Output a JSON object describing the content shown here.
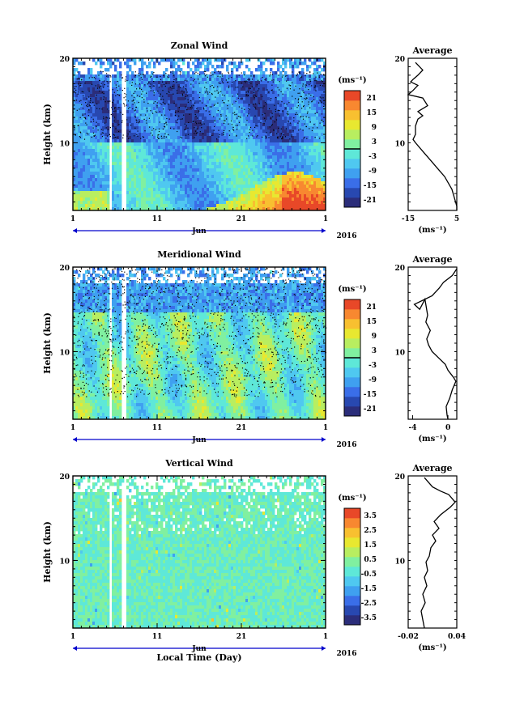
{
  "chart_data": [
    {
      "type": "heatmap",
      "title": "Zonal Wind",
      "ylabel": "Height (km)",
      "yticks": [
        "20",
        "10"
      ],
      "ylim": [
        2,
        20
      ],
      "xticks": [
        "1",
        "11",
        "21",
        "1"
      ],
      "month_label": "Jun",
      "year_label": "2016",
      "colorbar": {
        "unit": "(ms⁻¹)",
        "ticks": [
          "21",
          "15",
          "9",
          "3",
          "-3",
          "-9",
          "-15",
          "-21"
        ],
        "range": [
          -24,
          24
        ]
      },
      "profile": {
        "title": "Average",
        "yticks": [
          "20",
          "10"
        ],
        "xticks": [
          "-15",
          "5"
        ],
        "xlim": [
          -15,
          5
        ],
        "xlabel": "(ms⁻¹)",
        "points": [
          [
            -12,
            19.5
          ],
          [
            -9,
            18.6
          ],
          [
            -11,
            18
          ],
          [
            -13,
            17.5
          ],
          [
            -14,
            17.2
          ],
          [
            -11,
            16.8
          ],
          [
            -13,
            16.2
          ],
          [
            -15,
            15.7
          ],
          [
            -9,
            15.3
          ],
          [
            -7,
            14.4
          ],
          [
            -11,
            13.7
          ],
          [
            -9,
            13.2
          ],
          [
            -11,
            12.8
          ],
          [
            -12,
            12
          ],
          [
            -12,
            11
          ],
          [
            -13,
            10.4
          ],
          [
            -12,
            10
          ],
          [
            -9,
            9
          ],
          [
            -6,
            8
          ],
          [
            -3,
            7
          ],
          [
            0,
            6
          ],
          [
            2,
            5
          ],
          [
            3,
            4.5
          ],
          [
            4,
            3.5
          ],
          [
            5,
            2.5
          ],
          [
            5,
            2
          ]
        ]
      }
    },
    {
      "type": "heatmap",
      "title": "Meridional Wind",
      "ylabel": "Height (km)",
      "yticks": [
        "20",
        "10"
      ],
      "ylim": [
        2,
        20
      ],
      "xticks": [
        "1",
        "11",
        "21",
        "1"
      ],
      "month_label": "Jun",
      "year_label": "2016",
      "colorbar": {
        "unit": "(ms⁻¹)",
        "ticks": [
          "21",
          "15",
          "9",
          "3",
          "-3",
          "-9",
          "-15",
          "-21"
        ],
        "range": [
          -24,
          24
        ]
      },
      "profile": {
        "title": "Average",
        "yticks": [
          "20",
          "10"
        ],
        "xticks": [
          "-4",
          "0"
        ],
        "xlim": [
          -4.5,
          1
        ],
        "xlabel": "(ms⁻¹)",
        "points": [
          [
            1,
            19.8
          ],
          [
            0.5,
            19
          ],
          [
            -0.5,
            18.2
          ],
          [
            -1,
            17.5
          ],
          [
            -1.8,
            16.6
          ],
          [
            -3.8,
            15.6
          ],
          [
            -3.2,
            15
          ],
          [
            -2.6,
            16.2
          ],
          [
            -2.3,
            14.3
          ],
          [
            -2.5,
            13.5
          ],
          [
            -2,
            12.5
          ],
          [
            -2.4,
            11.5
          ],
          [
            -2.2,
            10.8
          ],
          [
            -1.8,
            10
          ],
          [
            -1,
            9.2
          ],
          [
            -0.3,
            8.5
          ],
          [
            0,
            7.8
          ],
          [
            0.6,
            7
          ],
          [
            0.9,
            6.5
          ],
          [
            0.5,
            5.5
          ],
          [
            0.2,
            4.5
          ],
          [
            -0.2,
            3.5
          ],
          [
            -0.1,
            2.5
          ],
          [
            0,
            2
          ]
        ]
      }
    },
    {
      "type": "heatmap",
      "title": "Vertical Wind",
      "ylabel": "Height (km)",
      "yticks": [
        "20",
        "10"
      ],
      "ylim": [
        2,
        20
      ],
      "xticks": [
        "1",
        "11",
        "21",
        "1"
      ],
      "month_label": "Jun",
      "year_label": "2016",
      "xlabel": "Local Time (Day)",
      "colorbar": {
        "unit": "(ms⁻¹)",
        "ticks": [
          "3.5",
          "2.5",
          "1.5",
          "0.5",
          "-0.5",
          "-1.5",
          "-2.5",
          "-3.5"
        ],
        "range": [
          -4,
          4
        ]
      },
      "profile": {
        "title": "Average",
        "yticks": [
          "20",
          "10"
        ],
        "xticks": [
          "-0.02",
          "0.04"
        ],
        "xlim": [
          -0.02,
          0.04
        ],
        "xlabel": "(ms⁻¹)",
        "points": [
          [
            0.0,
            19.8
          ],
          [
            0.01,
            18.7
          ],
          [
            0.02,
            18.2
          ],
          [
            0.03,
            17.8
          ],
          [
            0.038,
            16.9
          ],
          [
            0.032,
            16.3
          ],
          [
            0.02,
            15.4
          ],
          [
            0.012,
            14.6
          ],
          [
            0.018,
            13.8
          ],
          [
            0.01,
            13
          ],
          [
            0.014,
            12.3
          ],
          [
            0.008,
            11.5
          ],
          [
            0.006,
            10.5
          ],
          [
            0.002,
            9.8
          ],
          [
            0.004,
            8.8
          ],
          [
            0.0,
            8
          ],
          [
            0.003,
            7
          ],
          [
            -0.002,
            6
          ],
          [
            0.001,
            5
          ],
          [
            -0.004,
            4
          ],
          [
            -0.002,
            3
          ],
          [
            0.0,
            2
          ]
        ]
      }
    }
  ],
  "colors": {
    "scale": [
      "#2b2d7a",
      "#2848b0",
      "#3a6ee8",
      "#3fa0f0",
      "#4fc8f0",
      "#5ee8d8",
      "#80f0a0",
      "#b8ee60",
      "#e8e830",
      "#f8c030",
      "#f88830",
      "#e84828"
    ]
  }
}
